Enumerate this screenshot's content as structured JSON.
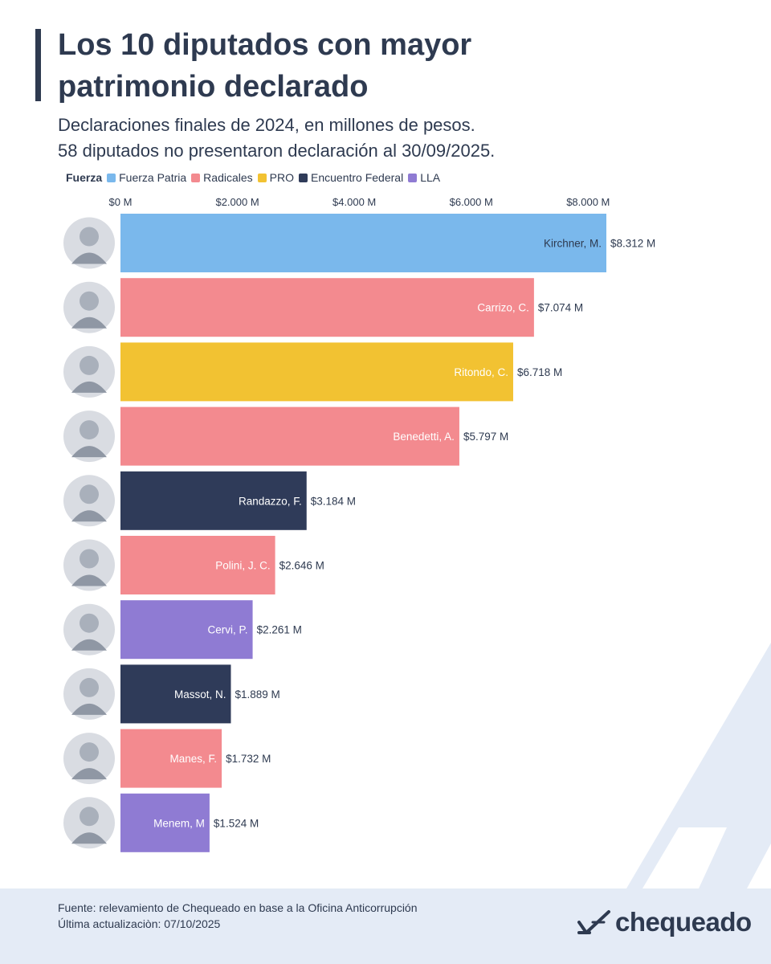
{
  "header": {
    "title_line1": "Los 10 diputados con mayor",
    "title_line2": "patrimonio declarado",
    "subtitle_line1": "Declaraciones finales de 2024, en millones de pesos.",
    "subtitle_line2": "58 diputados no presentaron declaración al 30/09/2025."
  },
  "legend": {
    "title": "Fuerza",
    "items": [
      {
        "label": "Fuerza Patria",
        "color": "#7ab8ec"
      },
      {
        "label": "Radicales",
        "color": "#f38a8f"
      },
      {
        "label": "PRO",
        "color": "#f2c232"
      },
      {
        "label": "Encuentro Federal",
        "color": "#2f3b59"
      },
      {
        "label": "LLA",
        "color": "#8f7bd3"
      }
    ]
  },
  "chart_data": {
    "type": "bar",
    "orientation": "horizontal",
    "title": "Los 10 diputados con mayor patrimonio declarado",
    "xlabel": "",
    "ylabel": "",
    "xlim": [
      0,
      8312
    ],
    "x_ticks": [
      {
        "value": 0,
        "label": "$0 M"
      },
      {
        "value": 2000,
        "label": "$2.000 M"
      },
      {
        "value": 4000,
        "label": "$4.000 M"
      },
      {
        "value": 6000,
        "label": "$6.000 M"
      },
      {
        "value": 8000,
        "label": "$8.000 M"
      }
    ],
    "grid": false,
    "legend_position": "top-left",
    "bars": [
      {
        "name": "Kirchner, M.",
        "value": 8312,
        "value_label": "$8.312 M",
        "fuerza": "Fuerza Patria",
        "color": "#7ab8ec"
      },
      {
        "name": "Carrizo, C.",
        "value": 7074,
        "value_label": "$7.074 M",
        "fuerza": "Radicales",
        "color": "#f38a8f"
      },
      {
        "name": "Ritondo, C.",
        "value": 6718,
        "value_label": "$6.718 M",
        "fuerza": "PRO",
        "color": "#f2c232"
      },
      {
        "name": "Benedetti, A.",
        "value": 5797,
        "value_label": "$5.797 M",
        "fuerza": "Radicales",
        "color": "#f38a8f"
      },
      {
        "name": "Randazzo, F.",
        "value": 3184,
        "value_label": "$3.184 M",
        "fuerza": "Encuentro Federal",
        "color": "#2f3b59"
      },
      {
        "name": "Polini, J. C.",
        "value": 2646,
        "value_label": "$2.646 M",
        "fuerza": "Radicales",
        "color": "#f38a8f"
      },
      {
        "name": "Cervi, P.",
        "value": 2261,
        "value_label": "$2.261 M",
        "fuerza": "LLA",
        "color": "#8f7bd3"
      },
      {
        "name": "Massot, N.",
        "value": 1889,
        "value_label": "$1.889 M",
        "fuerza": "Encuentro Federal",
        "color": "#2f3b59"
      },
      {
        "name": "Manes, F.",
        "value": 1732,
        "value_label": "$1.732 M",
        "fuerza": "Radicales",
        "color": "#f38a8f"
      },
      {
        "name": "Menem, M",
        "value": 1524,
        "value_label": "$1.524 M",
        "fuerza": "LLA",
        "color": "#8f7bd3"
      }
    ]
  },
  "footer": {
    "source_line1": "Fuente: relevamiento de Chequeado en base a la Oficina Anticorrupción",
    "source_line2": "Última actualizaciòn: 07/10/2025",
    "brand": "chequeado"
  }
}
